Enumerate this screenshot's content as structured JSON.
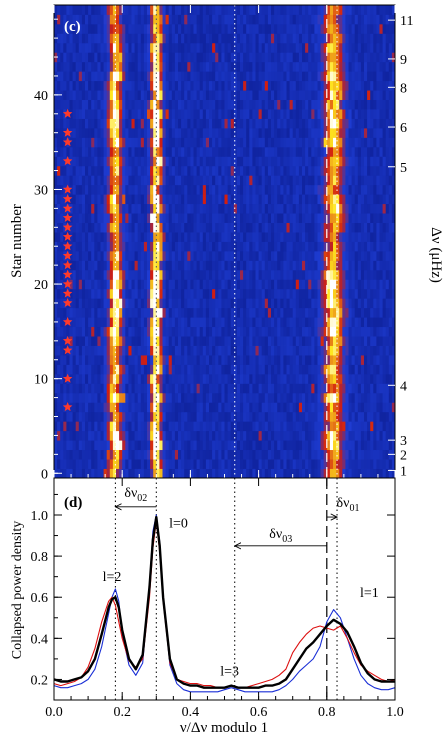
{
  "chart_data": [
    {
      "type": "heatmap",
      "panel_label": "(c)",
      "xlim": [
        0.0,
        1.0
      ],
      "ylim": [
        -0.5,
        49.5
      ],
      "ylabel": "Star number",
      "y_ticks": [
        0,
        10,
        20,
        30,
        40
      ],
      "right_axis_label": "Δν (μHz)",
      "right_axis_labels": [
        {
          "text": "11",
          "star": 47.9
        },
        {
          "text": "9",
          "star": 43.8
        },
        {
          "text": "8",
          "star": 40.8
        },
        {
          "text": "6",
          "star": 36.6
        },
        {
          "text": "5",
          "star": 32.4
        },
        {
          "text": "4",
          "star": 9.3
        },
        {
          "text": "3",
          "star": 3.5
        },
        {
          "text": "2",
          "star": 2.0
        },
        {
          "text": "1",
          "star": 0.3
        }
      ],
      "ridges": [
        {
          "degree": "l=2",
          "x": 0.18,
          "sigma": 0.014,
          "amp": 0.8
        },
        {
          "degree": "l=0",
          "x": 0.3,
          "sigma": 0.011,
          "amp": 1.0
        },
        {
          "degree": "l=1",
          "x": 0.82,
          "sigma": 0.02,
          "amp": 0.75
        }
      ],
      "star_markers": [
        7,
        10,
        13,
        14,
        16,
        18,
        19,
        20,
        21,
        22,
        23,
        24,
        25,
        26,
        27,
        28,
        29,
        30,
        33,
        35,
        36,
        38
      ],
      "reference_lines": [
        {
          "x": 0.18,
          "style": "dotted"
        },
        {
          "x": 0.3,
          "style": "dotted"
        },
        {
          "x": 0.53,
          "style": "dotted"
        },
        {
          "x": 0.8,
          "style": "dashed"
        },
        {
          "x": 0.83,
          "style": "dotted"
        }
      ],
      "colors": {
        "background": "#0a1a8c",
        "low": "#1e3cd2",
        "mid": "#d21e0f",
        "high": "#ffe620",
        "peak": "#ffffff",
        "marker": "#ff3a2a"
      }
    },
    {
      "type": "line",
      "panel_label": "(d)",
      "xlabel": "ν/Δν modulo 1",
      "ylabel": "Collapsed power density",
      "xlim": [
        0.0,
        1.0
      ],
      "ylim": [
        0.1,
        1.18
      ],
      "x_ticks": [
        "0.0",
        "0.2",
        "0.4",
        "0.6",
        "0.8",
        "1.0"
      ],
      "y_ticks": [
        "0.2",
        "0.4",
        "0.6",
        "0.8",
        "1.0"
      ],
      "reference_lines": [
        {
          "x": 0.18,
          "style": "dotted"
        },
        {
          "x": 0.3,
          "style": "dotted"
        },
        {
          "x": 0.53,
          "style": "dotted"
        },
        {
          "x": 0.8,
          "style": "dashed"
        },
        {
          "x": 0.83,
          "style": "dotted"
        }
      ],
      "annotations": [
        {
          "text": "l=2",
          "x": 0.17,
          "y": 0.68
        },
        {
          "text": "l=0",
          "x": 0.365,
          "y": 0.94
        },
        {
          "text": "l=3",
          "x": 0.515,
          "y": 0.22
        },
        {
          "text": "l=1",
          "x": 0.925,
          "y": 0.6
        }
      ],
      "arrows": [
        {
          "label": "δν",
          "subscript": "02",
          "from": 0.3,
          "to": 0.18,
          "y": 1.04
        },
        {
          "label": "δν",
          "subscript": "03",
          "from": 0.8,
          "to": 0.53,
          "y": 0.85
        },
        {
          "label": "δν",
          "subscript": "01",
          "from": 0.8,
          "to": 0.83,
          "y": 0.99
        }
      ],
      "x": [
        0.0,
        0.02,
        0.04,
        0.06,
        0.08,
        0.1,
        0.12,
        0.14,
        0.16,
        0.17,
        0.18,
        0.19,
        0.2,
        0.22,
        0.24,
        0.26,
        0.28,
        0.29,
        0.3,
        0.31,
        0.32,
        0.34,
        0.36,
        0.38,
        0.4,
        0.42,
        0.44,
        0.46,
        0.48,
        0.5,
        0.52,
        0.54,
        0.56,
        0.58,
        0.6,
        0.62,
        0.64,
        0.66,
        0.68,
        0.7,
        0.72,
        0.74,
        0.76,
        0.78,
        0.8,
        0.82,
        0.84,
        0.86,
        0.88,
        0.9,
        0.92,
        0.94,
        0.96,
        0.98,
        1.0
      ],
      "series": [
        {
          "color": "#000000",
          "width": 2.4,
          "values": [
            0.2,
            0.19,
            0.19,
            0.2,
            0.21,
            0.24,
            0.3,
            0.42,
            0.55,
            0.59,
            0.6,
            0.55,
            0.44,
            0.3,
            0.25,
            0.32,
            0.65,
            0.88,
            0.99,
            0.85,
            0.6,
            0.3,
            0.2,
            0.18,
            0.17,
            0.17,
            0.16,
            0.16,
            0.16,
            0.16,
            0.17,
            0.16,
            0.16,
            0.16,
            0.16,
            0.17,
            0.17,
            0.18,
            0.2,
            0.25,
            0.3,
            0.35,
            0.38,
            0.42,
            0.46,
            0.49,
            0.47,
            0.43,
            0.36,
            0.28,
            0.23,
            0.2,
            0.19,
            0.19,
            0.19
          ]
        },
        {
          "color": "#dd1010",
          "width": 1.1,
          "values": [
            0.18,
            0.17,
            0.18,
            0.19,
            0.21,
            0.26,
            0.35,
            0.48,
            0.58,
            0.6,
            0.56,
            0.48,
            0.4,
            0.29,
            0.26,
            0.3,
            0.6,
            0.84,
            0.97,
            0.82,
            0.58,
            0.28,
            0.2,
            0.19,
            0.18,
            0.18,
            0.17,
            0.17,
            0.16,
            0.16,
            0.17,
            0.16,
            0.16,
            0.17,
            0.18,
            0.19,
            0.2,
            0.22,
            0.25,
            0.33,
            0.38,
            0.42,
            0.45,
            0.46,
            0.45,
            0.44,
            0.46,
            0.4,
            0.33,
            0.27,
            0.24,
            0.22,
            0.2,
            0.19,
            0.2
          ]
        },
        {
          "color": "#1a2fd6",
          "width": 1.1,
          "values": [
            0.17,
            0.16,
            0.16,
            0.17,
            0.18,
            0.2,
            0.25,
            0.36,
            0.52,
            0.6,
            0.64,
            0.58,
            0.42,
            0.27,
            0.22,
            0.28,
            0.66,
            0.92,
            1.0,
            0.87,
            0.6,
            0.27,
            0.18,
            0.15,
            0.14,
            0.14,
            0.14,
            0.14,
            0.14,
            0.15,
            0.16,
            0.15,
            0.14,
            0.14,
            0.14,
            0.14,
            0.14,
            0.15,
            0.17,
            0.2,
            0.24,
            0.27,
            0.3,
            0.36,
            0.48,
            0.54,
            0.5,
            0.4,
            0.3,
            0.22,
            0.18,
            0.16,
            0.15,
            0.15,
            0.16
          ]
        }
      ]
    }
  ]
}
